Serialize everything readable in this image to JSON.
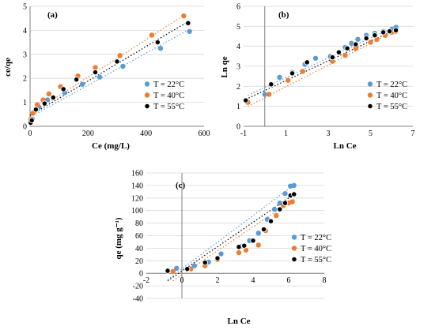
{
  "colors": {
    "T22": "#5b9bd5",
    "T40": "#ed7d31",
    "T55": "#000000",
    "grid": "#d9d9d9",
    "axis": "#7f7f7f"
  },
  "chart_data": [
    {
      "type": "scatter",
      "title": "(a)",
      "xlabel": "Ce (mg/L)",
      "ylabel": "ce/qe",
      "xlim": [
        0,
        600
      ],
      "ylim": [
        0,
        5
      ],
      "xticks": [
        0,
        200,
        400,
        600
      ],
      "yticks": [
        0,
        1,
        2,
        3,
        4,
        5
      ],
      "grid": true,
      "legend": "bottom-right",
      "series": [
        {
          "name": "T = 22°C",
          "color": "#5b9bd5",
          "x": [
            2,
            8,
            30,
            60,
            120,
            180,
            240,
            320,
            450,
            550
          ],
          "y": [
            0.2,
            0.3,
            0.8,
            1.1,
            1.4,
            1.75,
            2.05,
            2.5,
            3.25,
            3.95
          ],
          "trend": [
            [
              0,
              0.38
            ],
            [
              550,
              4.05
            ]
          ]
        },
        {
          "name": "T = 40°C",
          "color": "#ed7d31",
          "x": [
            3,
            10,
            25,
            45,
            65,
            105,
            165,
            225,
            310,
            420,
            530
          ],
          "y": [
            0.3,
            0.55,
            0.9,
            1.1,
            1.35,
            1.65,
            2.1,
            2.45,
            2.95,
            3.8,
            4.6
          ],
          "trend": [
            [
              0,
              0.5
            ],
            [
              540,
              4.7
            ]
          ]
        },
        {
          "name": "T = 55°C",
          "color": "#000000",
          "x": [
            2,
            6,
            20,
            50,
            80,
            115,
            160,
            225,
            300,
            440,
            545
          ],
          "y": [
            0.15,
            0.25,
            0.7,
            0.95,
            1.2,
            1.55,
            1.95,
            2.25,
            2.7,
            3.5,
            4.3
          ],
          "trend": [
            [
              0,
              0.45
            ],
            [
              550,
              4.4
            ]
          ]
        }
      ]
    },
    {
      "type": "scatter",
      "title": "(b)",
      "xlabel": "Ln Ce",
      "ylabel": "Ln qe",
      "xlim": [
        -1,
        7
      ],
      "ylim": [
        0,
        6
      ],
      "xticks": [
        -1,
        1,
        3,
        5,
        7
      ],
      "yticks": [
        0,
        1,
        2,
        3,
        4,
        5,
        6
      ],
      "grid": true,
      "legend": "bottom-right",
      "series": [
        {
          "name": "T = 22°C",
          "color": "#5b9bd5",
          "x": [
            -0.8,
            0.0,
            0.7,
            1.3,
            1.9,
            2.4,
            3.1,
            3.5,
            3.8,
            4.1,
            4.4,
            4.8,
            5.2,
            5.6,
            6.0,
            6.2
          ],
          "y": [
            1.2,
            1.6,
            2.45,
            2.7,
            3.1,
            3.4,
            3.5,
            3.7,
            3.95,
            4.15,
            4.35,
            4.55,
            4.65,
            4.75,
            4.85,
            4.95
          ],
          "trend": [
            [
              -0.8,
              1.55
            ],
            [
              6.3,
              5.05
            ]
          ]
        },
        {
          "name": "T = 40°C",
          "color": "#ed7d31",
          "x": [
            -0.8,
            0.2,
            1.1,
            1.8,
            3.2,
            3.8,
            4.3,
            5.0,
            5.3,
            5.7,
            6.0,
            6.2
          ],
          "y": [
            1.2,
            1.6,
            2.3,
            2.75,
            3.25,
            3.55,
            3.9,
            4.2,
            4.35,
            4.55,
            4.7,
            4.75
          ],
          "trend": [
            [
              -0.8,
              1.0
            ],
            [
              6.3,
              4.85
            ]
          ]
        },
        {
          "name": "T = 55°C",
          "color": "#000000",
          "x": [
            -0.9,
            0.3,
            1.3,
            2.0,
            3.2,
            3.5,
            3.9,
            4.3,
            4.8,
            5.2,
            5.6,
            5.9,
            6.2
          ],
          "y": [
            1.3,
            2.1,
            2.65,
            3.2,
            3.45,
            3.7,
            3.9,
            4.1,
            4.4,
            4.55,
            4.7,
            4.75,
            4.8
          ],
          "trend": [
            [
              -0.9,
              1.35
            ],
            [
              6.3,
              4.9
            ]
          ]
        }
      ]
    },
    {
      "type": "scatter",
      "title": "(c)",
      "xlabel": "Ln Ce",
      "ylabel": "qe (mg g⁻¹)",
      "xlim": [
        -2,
        8
      ],
      "ylim": [
        -40,
        160
      ],
      "xticks": [
        -2,
        0,
        2,
        4,
        6,
        8
      ],
      "yticks": [
        -40,
        -20,
        0,
        20,
        40,
        60,
        80,
        100,
        120,
        140,
        160
      ],
      "grid": true,
      "legend": "right",
      "series": [
        {
          "name": "T = 22°C",
          "color": "#5b9bd5",
          "x": [
            -0.8,
            -0.3,
            0.7,
            1.5,
            2.2,
            3.3,
            3.8,
            4.3,
            4.8,
            5.2,
            5.5,
            5.8,
            6.1,
            6.3
          ],
          "y": [
            5,
            8,
            12,
            18,
            31,
            43,
            52,
            64,
            86,
            102,
            112,
            127,
            139,
            140
          ],
          "trend": [
            [
              -0.8,
              -10
            ],
            [
              6.3,
              141
            ]
          ]
        },
        {
          "name": "T = 40°C",
          "color": "#ed7d31",
          "x": [
            -0.5,
            0.5,
            1.3,
            2.0,
            3.2,
            3.6,
            4.3,
            4.7,
            5.3,
            5.7,
            6.0,
            6.2
          ],
          "y": [
            3,
            7,
            12,
            22,
            33,
            37,
            45,
            68,
            92,
            108,
            112,
            114
          ],
          "trend": [
            [
              -0.5,
              -12
            ],
            [
              6.3,
              118
            ]
          ]
        },
        {
          "name": "T = 55°C",
          "color": "#000000",
          "x": [
            -0.8,
            0.3,
            1.3,
            2.0,
            3.2,
            3.5,
            4.0,
            4.6,
            5.0,
            5.5,
            5.8,
            6.1,
            6.3
          ],
          "y": [
            4,
            7,
            17,
            24,
            42,
            44,
            52,
            70,
            83,
            102,
            112,
            124,
            126
          ],
          "trend": [
            [
              -0.8,
              -12
            ],
            [
              6.3,
              126
            ]
          ]
        }
      ]
    }
  ]
}
